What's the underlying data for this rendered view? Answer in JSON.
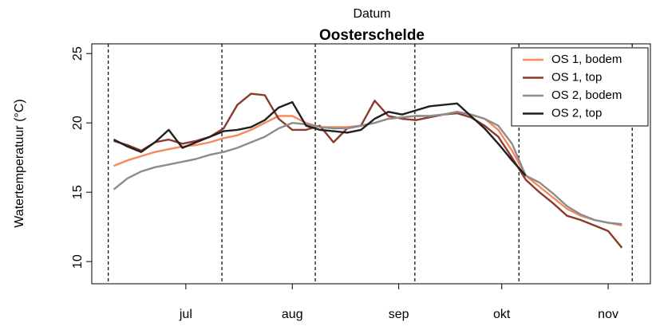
{
  "chart_data": {
    "type": "line",
    "title": "Oosterschelde",
    "xlabel": "Datum",
    "ylabel": "Watertemperatuur (°C)",
    "x": [
      -21,
      -17,
      -13,
      -9,
      -5,
      -1,
      3,
      7,
      11,
      15,
      19,
      23,
      27,
      31,
      35,
      39,
      43,
      47,
      51,
      55,
      59,
      63,
      67,
      71,
      75,
      79,
      83,
      87,
      91,
      95,
      99,
      103,
      107,
      111,
      115,
      119,
      123,
      127
    ],
    "xlim": [
      -27.4,
      135.3
    ],
    "xticks": [
      {
        "value": 0,
        "label": "jul"
      },
      {
        "value": 31,
        "label": "aug"
      },
      {
        "value": 62,
        "label": "sep"
      },
      {
        "value": 92,
        "label": "okt"
      },
      {
        "value": 123,
        "label": "nov"
      }
    ],
    "ylim": [
      8.4,
      25.7
    ],
    "yticks": [
      10,
      15,
      20,
      25
    ],
    "vlines": [
      -22.6,
      10.5,
      37.7,
      66.7,
      97,
      130
    ],
    "legend": "topright",
    "series": [
      {
        "name": "OS 1, bodem",
        "color": "#f58a5c",
        "values": [
          16.9,
          17.3,
          17.6,
          17.9,
          18.1,
          18.3,
          18.4,
          18.6,
          18.9,
          19.1,
          19.5,
          20.0,
          20.5,
          20.5,
          20.0,
          19.7,
          19.7,
          19.7,
          19.8,
          20.0,
          20.3,
          20.4,
          20.5,
          20.5,
          20.6,
          20.8,
          20.6,
          20.3,
          19.5,
          18.0,
          16.2,
          15.4,
          14.6,
          13.8,
          13.3,
          13.0,
          12.8,
          12.6
        ]
      },
      {
        "name": "OS 1, top",
        "color": "#8b3a2c",
        "values": [
          18.7,
          18.4,
          18.0,
          18.6,
          18.8,
          18.5,
          18.7,
          19.0,
          19.6,
          21.3,
          22.1,
          22.0,
          20.3,
          19.5,
          19.5,
          19.8,
          18.6,
          19.6,
          19.8,
          21.6,
          20.5,
          20.3,
          20.2,
          20.4,
          20.6,
          20.7,
          20.4,
          19.8,
          19.0,
          17.5,
          15.9,
          15.0,
          14.2,
          13.3,
          13.0,
          12.6,
          12.2,
          11.0
        ]
      },
      {
        "name": "OS 2, bodem",
        "color": "#8c8c8c",
        "values": [
          15.2,
          16.0,
          16.5,
          16.8,
          17.0,
          17.2,
          17.4,
          17.7,
          17.9,
          18.2,
          18.6,
          19.0,
          19.6,
          20.0,
          19.9,
          19.7,
          19.6,
          19.6,
          19.8,
          20.0,
          20.3,
          20.4,
          20.5,
          20.5,
          20.6,
          20.8,
          20.6,
          20.3,
          19.8,
          18.5,
          16.2,
          15.7,
          14.9,
          14.0,
          13.4,
          13.0,
          12.8,
          12.7
        ]
      },
      {
        "name": "OS 2, top",
        "color": "#231f1f",
        "values": [
          18.8,
          18.3,
          17.9,
          18.6,
          19.5,
          18.2,
          18.6,
          19.0,
          19.4,
          19.5,
          19.7,
          20.2,
          21.1,
          21.5,
          19.8,
          19.5,
          19.4,
          19.3,
          19.5,
          20.3,
          20.8,
          20.6,
          20.9,
          21.2,
          21.3,
          21.4,
          20.5,
          19.6,
          18.5,
          17.3,
          16.2,
          null,
          null,
          null,
          null,
          null,
          null,
          null
        ]
      }
    ]
  }
}
